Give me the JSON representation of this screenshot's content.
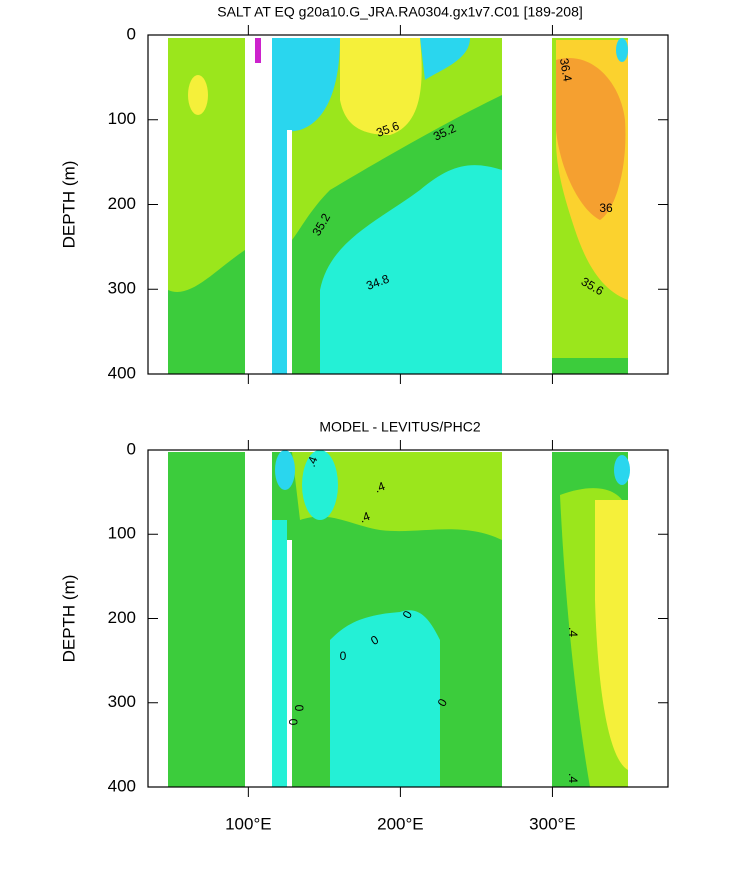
{
  "chart_data": [
    {
      "type": "contour",
      "title": "SALT AT EQ g20a10.G_JRA.RA0304.gx1v7.C01 [189-208]",
      "y_label": "DEPTH (m)",
      "xlim": [
        34,
        376
      ],
      "xticks": [
        100,
        200,
        300
      ],
      "ylim": [
        400,
        0
      ],
      "yticks": [
        0,
        100,
        200,
        300,
        400
      ],
      "contour_labels": [
        36.4,
        35.6,
        35.2,
        35.2,
        36,
        34.8,
        35.6
      ]
    },
    {
      "type": "contour",
      "title": "MODEL - LEVITUS/PHC2",
      "y_label": "DEPTH (m)",
      "xlim": [
        34,
        376
      ],
      "xticks": [
        {
          "value": 100,
          "label": "100°E"
        },
        {
          "value": 200,
          "label": "200°E"
        },
        {
          "value": 300,
          "label": "300°E"
        }
      ],
      "ylim": [
        400,
        0
      ],
      "yticks": [
        0,
        100,
        200,
        300,
        400
      ],
      "contour_labels": [
        {
          "value": 0.4,
          "label": ".4"
        },
        {
          "value": 0.4,
          "label": ".4"
        },
        {
          "value": 0.4,
          "label": ".4"
        },
        0,
        0,
        0,
        0,
        0,
        0,
        {
          "value": 0.4,
          "label": ".4"
        },
        {
          "value": 0.4,
          "label": ".4"
        }
      ]
    }
  ]
}
